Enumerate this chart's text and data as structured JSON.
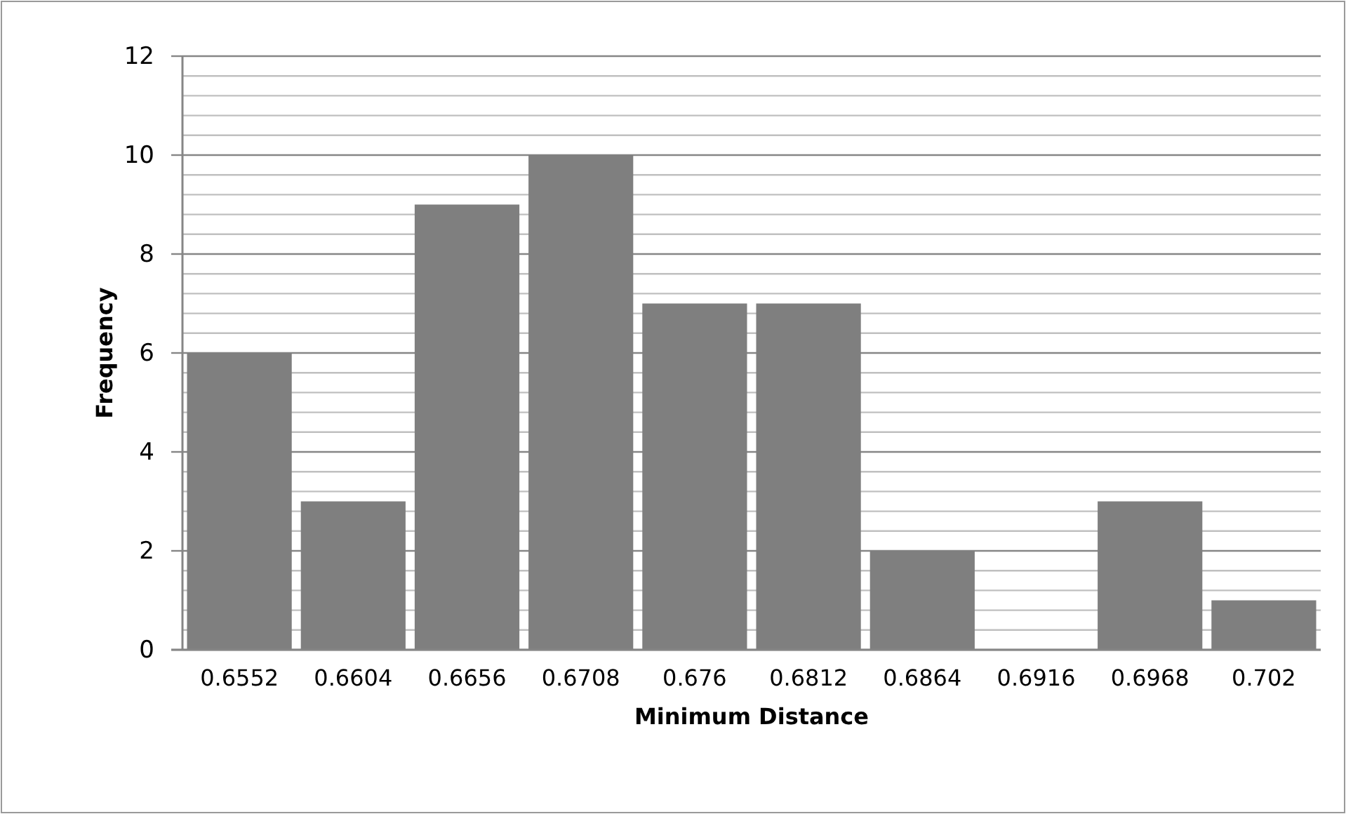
{
  "chart_data": {
    "type": "bar",
    "xlabel": "Minimum Distance",
    "ylabel": "Frequency",
    "categories": [
      "0.6552",
      "0.6604",
      "0.6656",
      "0.6708",
      "0.676",
      "0.6812",
      "0.6864",
      "0.6916",
      "0.6968",
      "0.702"
    ],
    "values": [
      6,
      3,
      9,
      10,
      7,
      7,
      2,
      0,
      3,
      1
    ],
    "color": "#7f7f7f",
    "ylim": [
      0,
      12
    ],
    "yticks": [
      0,
      2,
      4,
      6,
      8,
      10,
      12
    ],
    "grid": "y"
  }
}
